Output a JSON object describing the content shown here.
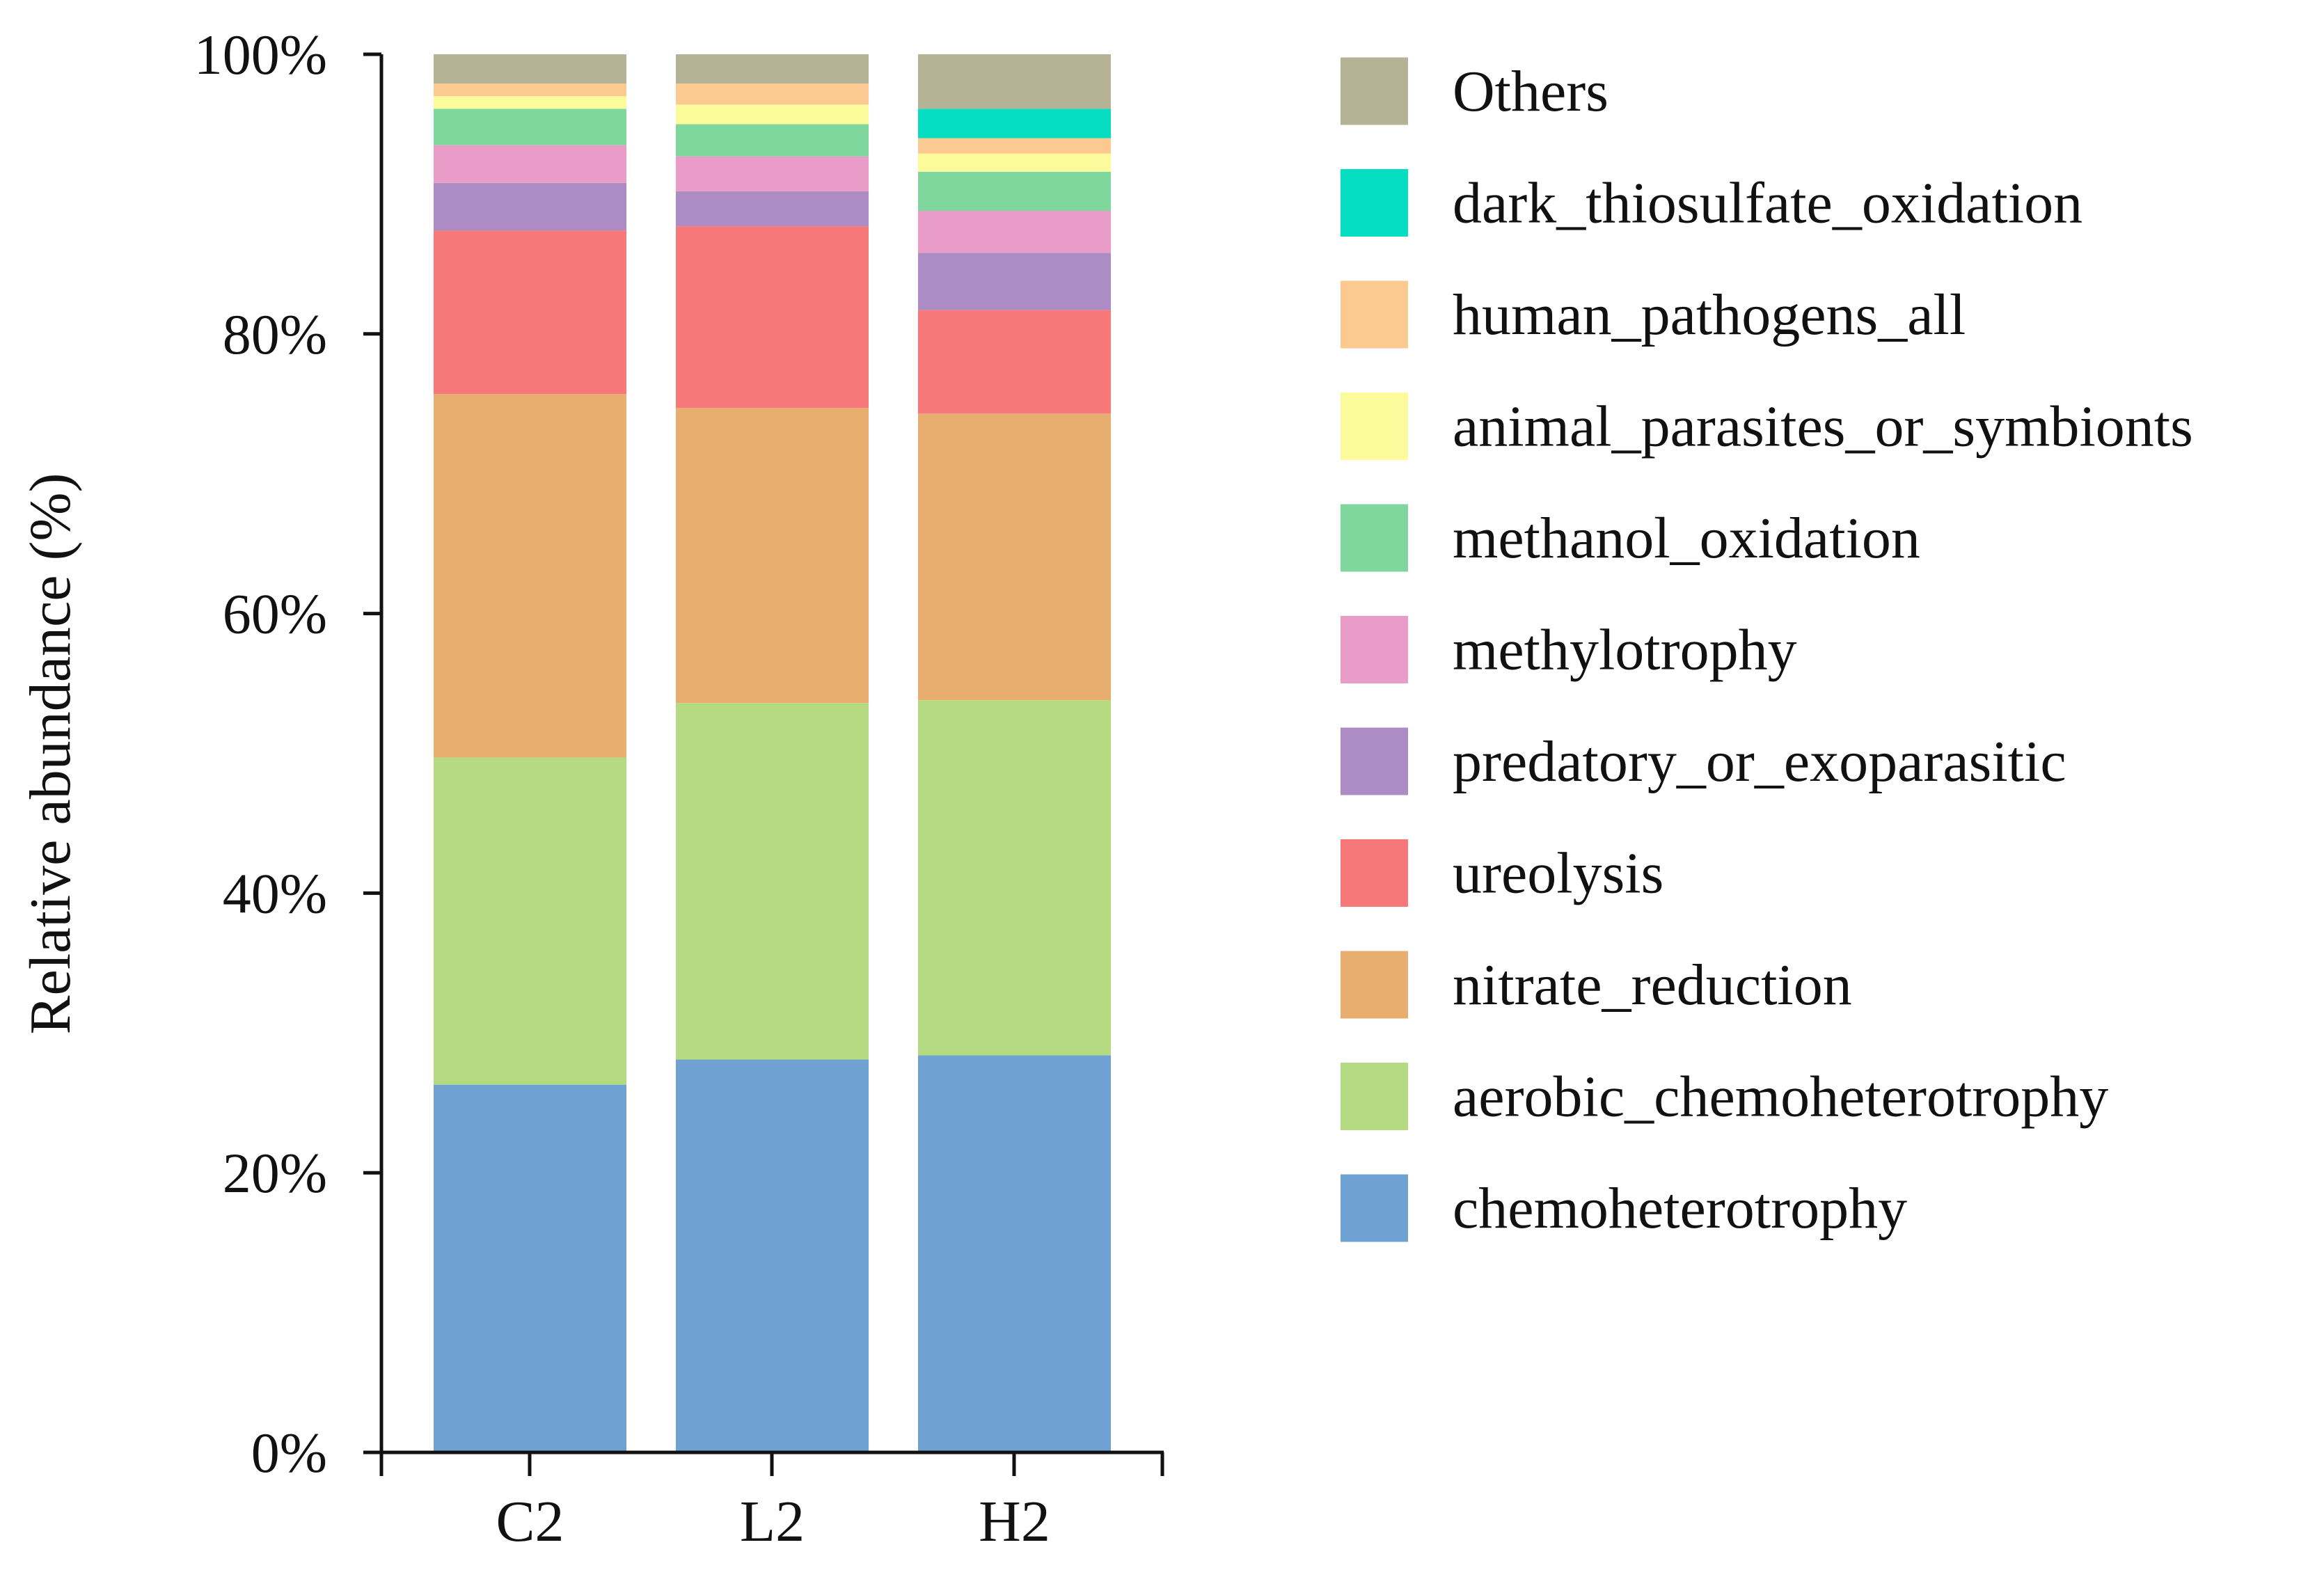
{
  "chart_data": {
    "type": "bar",
    "stacked": true,
    "percent": true,
    "title": "",
    "xlabel": "",
    "ylabel": "Relative abundance (%)",
    "ylim": [
      0,
      100
    ],
    "yticks": [
      "0%",
      "20%",
      "40%",
      "60%",
      "80%",
      "100%"
    ],
    "grid": false,
    "legend_position": "right",
    "categories": [
      "C2",
      "L2",
      "H2"
    ],
    "series": [
      {
        "name": "chemoheterotrophy",
        "color": "#6FA1D2",
        "values": [
          26.3,
          28.1,
          28.4
        ]
      },
      {
        "name": "aerobic_chemoheterotrophy",
        "color": "#B5DB82",
        "values": [
          23.4,
          25.5,
          25.4
        ]
      },
      {
        "name": "nitrate_reduction",
        "color": "#E7AE70",
        "values": [
          26.0,
          21.1,
          20.5
        ]
      },
      {
        "name": "ureolysis",
        "color": "#F77879",
        "values": [
          11.7,
          13.0,
          7.4
        ]
      },
      {
        "name": "predatory_or_exoparasitic",
        "color": "#AD8BC5",
        "values": [
          3.4,
          2.5,
          4.1
        ]
      },
      {
        "name": "methylotrophy",
        "color": "#EA9CC9",
        "values": [
          2.7,
          2.5,
          3.0
        ]
      },
      {
        "name": "methanol_oxidation",
        "color": "#80D79D",
        "values": [
          2.6,
          2.3,
          2.8
        ]
      },
      {
        "name": "animal_parasites_or_symbionts",
        "color": "#FBFB9B",
        "values": [
          0.9,
          1.4,
          1.3
        ]
      },
      {
        "name": "human_pathogens_all",
        "color": "#FCCA91",
        "values": [
          0.9,
          1.5,
          1.1
        ]
      },
      {
        "name": "dark_thiosulfate_oxidation",
        "color": "#07DDC0",
        "values": [
          0.0,
          0.0,
          2.1
        ]
      },
      {
        "name": "Others",
        "color": "#B5B395",
        "values": [
          2.1,
          2.1,
          3.9
        ]
      }
    ]
  }
}
